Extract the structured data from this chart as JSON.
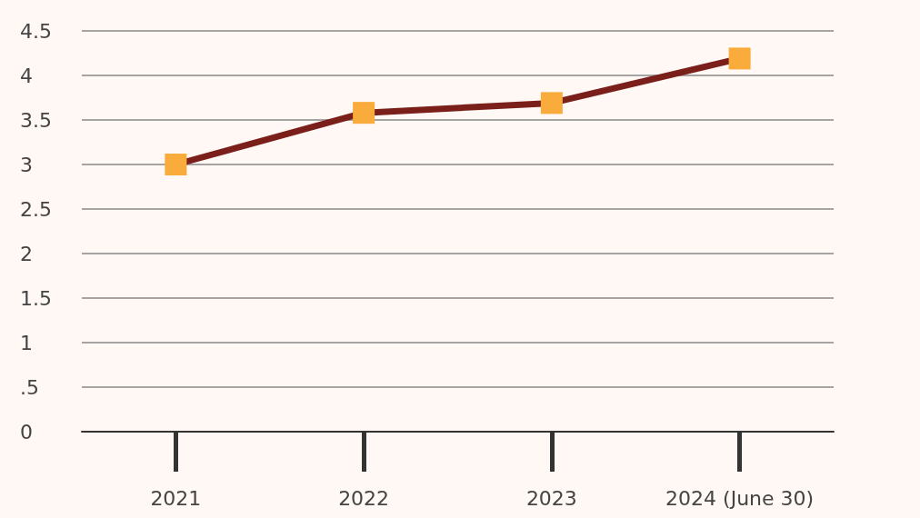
{
  "chart_data": {
    "type": "line",
    "categories": [
      "2021",
      "2022",
      "2023",
      "2024 (June 30)"
    ],
    "series": [
      {
        "color": "#7b1f1a",
        "colors": [
          "#f9ab3b",
          "#f9ab3b",
          "#f9ab3b",
          "#f9ab3b"
        ],
        "values": [
          3.0,
          3.58,
          3.69,
          4.19
        ]
      }
    ],
    "ylim": [
      0,
      4.5
    ],
    "yticks": [
      0,
      {
        "value": 0.5,
        "label": ".5"
      },
      1,
      1.5,
      2,
      2.5,
      3,
      3.5,
      4,
      4.5
    ],
    "grid": "y",
    "marker": "square",
    "line_style": "solid"
  }
}
